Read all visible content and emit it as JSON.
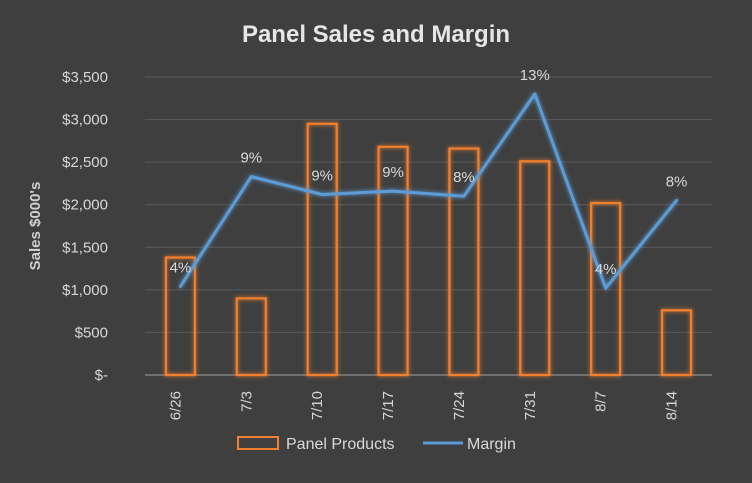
{
  "chart_data": {
    "type": "bar",
    "title": "Panel Sales and Margin",
    "xlabel": "",
    "ylabel": "Sales $000's",
    "categories": [
      "6/26",
      "7/3",
      "7/10",
      "7/17",
      "7/24",
      "7/31",
      "8/7",
      "8/14"
    ],
    "ylim": [
      0,
      3500
    ],
    "yticks": [
      0,
      500,
      1000,
      1500,
      2000,
      2500,
      3000,
      3500
    ],
    "ytick_labels": [
      "$-",
      "$500",
      "$1,000",
      "$1,500",
      "$2,000",
      "$2,500",
      "$3,000",
      "$3,500"
    ],
    "series": [
      {
        "name": "Panel Products",
        "type": "bar",
        "values": [
          1380,
          900,
          2950,
          2680,
          2660,
          2510,
          2020,
          760
        ],
        "color": "#f07f2f"
      },
      {
        "name": "Margin",
        "type": "line",
        "values_percent": [
          4,
          9,
          9,
          9,
          8,
          13,
          4,
          8
        ],
        "labels": [
          "4%",
          "9%",
          "9%",
          "9%",
          "8%",
          "13%",
          "4%",
          "8%"
        ],
        "plot_values_on_sales_axis": [
          1040,
          2330,
          2120,
          2160,
          2100,
          3300,
          1020,
          2050
        ],
        "color": "#5b9bd5"
      }
    ],
    "grid": true,
    "legend_position": "bottom"
  }
}
